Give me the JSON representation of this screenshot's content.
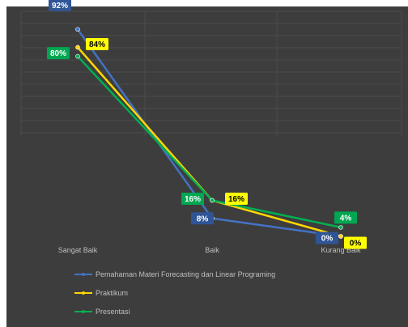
{
  "chart_data": {
    "type": "line",
    "title": "",
    "xlabel": "",
    "ylabel": "",
    "categories": [
      "Sangat Baik",
      "Baik",
      "Kurang Baik"
    ],
    "ylim": [
      0,
      1
    ],
    "grid": true,
    "legend_position": "bottom",
    "series": [
      {
        "name": "Pemahaman Materi Forecasting dan Linear Programing",
        "color": "#4472c4",
        "label_bg": "#2f5597",
        "label_fg": "#ffffff",
        "values": [
          0.92,
          0.08,
          0.0
        ],
        "labels": [
          "92%",
          "8%",
          "0%"
        ]
      },
      {
        "name": "Praktikum",
        "color": "#ffd700",
        "label_bg": "#ffff00",
        "label_fg": "#000000",
        "values": [
          0.84,
          0.16,
          0.0
        ],
        "labels": [
          "84%",
          "16%",
          "0%"
        ]
      },
      {
        "name": "Presentasi",
        "color": "#00b050",
        "label_bg": "#00a651",
        "label_fg": "#ffffff",
        "values": [
          0.8,
          0.16,
          0.04
        ],
        "labels": [
          "80%",
          "16%",
          "4%"
        ]
      }
    ]
  }
}
